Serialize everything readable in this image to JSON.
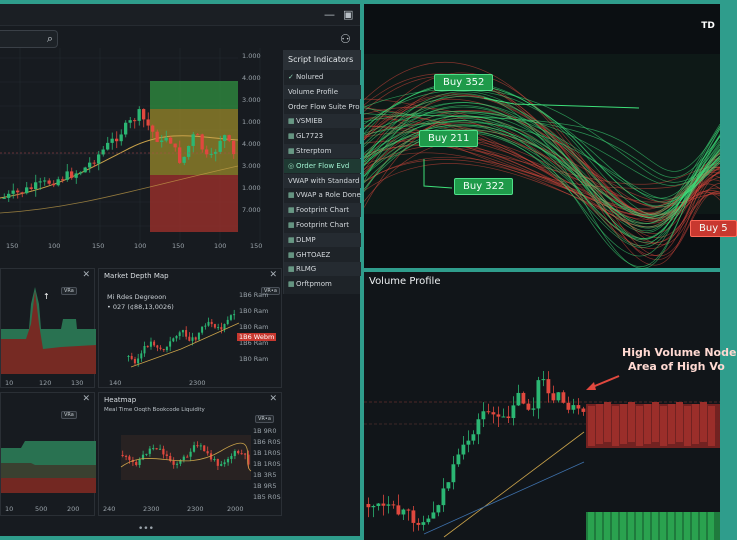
{
  "left_app": {
    "y_ticks": [
      "1.000",
      "4.000",
      "3.000",
      "1.000",
      "4.000",
      "3.000",
      "1.000",
      "7.000"
    ],
    "x_ticks": [
      "150",
      "100",
      "150",
      "100",
      "150",
      "100",
      "150"
    ],
    "sidebar": {
      "title": "Script Indicators",
      "items": [
        {
          "icon": "check-icon",
          "label": "Nolured"
        },
        {
          "icon": "",
          "label": "Volume Profile"
        },
        {
          "icon": "",
          "label": "Order Flow Suite Pro"
        },
        {
          "icon": "grid-icon",
          "label": "VSMIEB"
        },
        {
          "icon": "grid-icon",
          "label": "GL7723"
        },
        {
          "icon": "grid-icon",
          "label": "Strerptom"
        },
        {
          "icon": "circle-icon",
          "label": "Order Flow Evd"
        },
        {
          "icon": "",
          "label": "VWAP with Standard"
        },
        {
          "icon": "grid-icon",
          "label": "VWAP a Role Done"
        },
        {
          "icon": "grid-icon",
          "label": "Footprint Chart"
        },
        {
          "icon": "grid-icon",
          "label": "Footprint Chart"
        },
        {
          "icon": "grid-icon",
          "label": "DLMP"
        },
        {
          "icon": "grid-icon",
          "label": "GHTOAEZ"
        },
        {
          "icon": "grid-icon",
          "label": "RLMG"
        },
        {
          "icon": "grid-icon",
          "label": "Orftpmom"
        }
      ]
    },
    "mid_left": {
      "x_ticks": [
        "10",
        "120",
        "130"
      ],
      "tag": "VRa"
    },
    "market_depth": {
      "title": "Market Depth Map",
      "line1": "Mi Rdes Degreoon",
      "line2": "• 027 (¢88,13,0026)",
      "tag": "VR•a",
      "y_ticks": [
        "1B6 Ram",
        "1B0 Ram",
        "1B0 Ram",
        "1B6 Ram",
        "1B0 Ram"
      ],
      "price_badge": "1B6 Webm",
      "x_ticks": [
        "140",
        "2300"
      ]
    },
    "bottom_left": {
      "x_ticks": [
        "10",
        "500",
        "200"
      ],
      "tag": "VRa"
    },
    "heatmap": {
      "title": "Heatmap",
      "subtitle": "Meal Time Ooqth Bookcode Liquidity",
      "tag": "VR•a",
      "y_ticks": [
        "1B 9R0",
        "1B6 R0S",
        "1B 1R0S",
        "1B 1R0S",
        "1B 3R5",
        "1B 9R5",
        "1B5 R0S"
      ],
      "x_ticks": [
        "240",
        "2300",
        "2300",
        "2000"
      ]
    }
  },
  "flow": {
    "buttons": [
      {
        "label": "Buy 352",
        "color": "green"
      },
      {
        "label": "Buy 211",
        "color": "green"
      },
      {
        "label": "Buy 322",
        "color": "green"
      },
      {
        "label": "Buy 5",
        "color": "red"
      }
    ],
    "logo": "TD"
  },
  "volume_profile": {
    "title": "Volume Profile",
    "callout_line1": "High Volume Node",
    "callout_line2": "Area of High Vo"
  },
  "colors": {
    "up": "#26a269",
    "down": "#e0483e",
    "frame": "#2f9d8c"
  }
}
